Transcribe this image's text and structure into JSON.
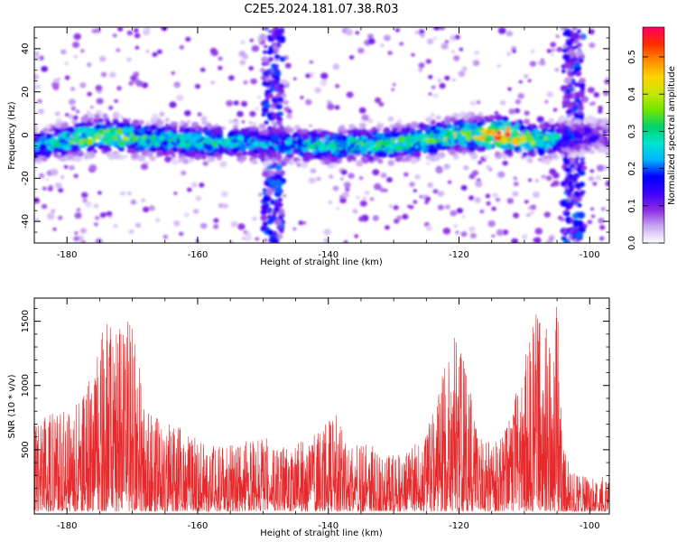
{
  "figure": {
    "title": "C2E5.2024.181.07.38.R03"
  },
  "colors": {
    "snr_line": "#e8282a",
    "spectrogram_ramp": [
      "#ffffff",
      "#c9a9f2",
      "#8a2be2",
      "#3b00ff",
      "#0000ff",
      "#00b4ff",
      "#00e5d0",
      "#00d26a",
      "#6fe600",
      "#c8e600",
      "#ffd400",
      "#ff8a00",
      "#ff2a00",
      "#ff0066"
    ]
  },
  "chart_data": [
    {
      "type": "heatmap",
      "title": "",
      "xlabel": "Height of straight line (km)",
      "ylabel": "Frequency (Hz)",
      "xlim": [
        -185,
        -97
      ],
      "ylim": [
        -50,
        50
      ],
      "xticks": [
        -180,
        -160,
        -140,
        -120,
        -100
      ],
      "yticks": [
        -40,
        -20,
        0,
        20,
        40
      ],
      "colorbar": {
        "label": "Normalized spectral amplitude",
        "range": [
          0,
          0.58
        ],
        "ticks": [
          "0.0",
          "0.1",
          "0.2",
          "0.3",
          "0.4",
          "0.5"
        ]
      },
      "band": {
        "center_frequency_hz": [
          [
            -185,
            -5
          ],
          [
            -175,
            0
          ],
          [
            -160,
            -3
          ],
          [
            -150,
            -4
          ],
          [
            -140,
            -5
          ],
          [
            -130,
            -4
          ],
          [
            -120,
            0
          ],
          [
            -113,
            0
          ],
          [
            -108,
            -3
          ],
          [
            -104,
            -1
          ],
          [
            -97,
            0
          ]
        ],
        "half_width_hz": 8,
        "peak_amplitude": [
          [
            -185,
            0.22
          ],
          [
            -180,
            0.32
          ],
          [
            -174,
            0.42
          ],
          [
            -170,
            0.34
          ],
          [
            -163,
            0.28
          ],
          [
            -158,
            0.3
          ],
          [
            -150,
            0.24
          ],
          [
            -143,
            0.27
          ],
          [
            -136,
            0.3
          ],
          [
            -128,
            0.32
          ],
          [
            -121,
            0.36
          ],
          [
            -117,
            0.4
          ],
          [
            -113,
            0.58
          ],
          [
            -109,
            0.36
          ],
          [
            -106,
            0.32
          ],
          [
            -104,
            0.2
          ],
          [
            -97,
            0.12
          ]
        ]
      },
      "broadband_columns_km": [
        [
          -150,
          -147
        ],
        [
          -104,
          -101
        ]
      ]
    },
    {
      "type": "line",
      "title": "",
      "xlabel": "Height of straight line (km)",
      "ylabel": "SNR (10 * v/v)",
      "xlim": [
        -185,
        -97
      ],
      "ylim": [
        0,
        1680
      ],
      "xticks": [
        -180,
        -160,
        -140,
        -120,
        -100
      ],
      "yticks": [
        500,
        1000,
        1500
      ],
      "series": [
        {
          "values_envelope": [
            [
              -185,
              720
            ],
            [
              -182,
              800
            ],
            [
              -179,
              850
            ],
            [
              -176,
              1100
            ],
            [
              -174,
              1560
            ],
            [
              -172,
              1500
            ],
            [
              -170,
              1550
            ],
            [
              -168,
              800
            ],
            [
              -165,
              720
            ],
            [
              -162,
              650
            ],
            [
              -159,
              550
            ],
            [
              -156,
              510
            ],
            [
              -153,
              560
            ],
            [
              -150,
              600
            ],
            [
              -147,
              520
            ],
            [
              -144,
              560
            ],
            [
              -141,
              650
            ],
            [
              -139,
              820
            ],
            [
              -137,
              500
            ],
            [
              -134,
              560
            ],
            [
              -131,
              460
            ],
            [
              -128,
              470
            ],
            [
              -125,
              640
            ],
            [
              -123,
              950
            ],
            [
              -121,
              1500
            ],
            [
              -119,
              1150
            ],
            [
              -117,
              620
            ],
            [
              -114,
              560
            ],
            [
              -112,
              800
            ],
            [
              -110,
              1200
            ],
            [
              -108,
              1600
            ],
            [
              -106,
              1400
            ],
            [
              -105,
              1660
            ],
            [
              -104,
              700
            ],
            [
              -103,
              320
            ],
            [
              -100,
              260
            ],
            [
              -97,
              280
            ]
          ],
          "values_floor": 20
        }
      ]
    }
  ]
}
